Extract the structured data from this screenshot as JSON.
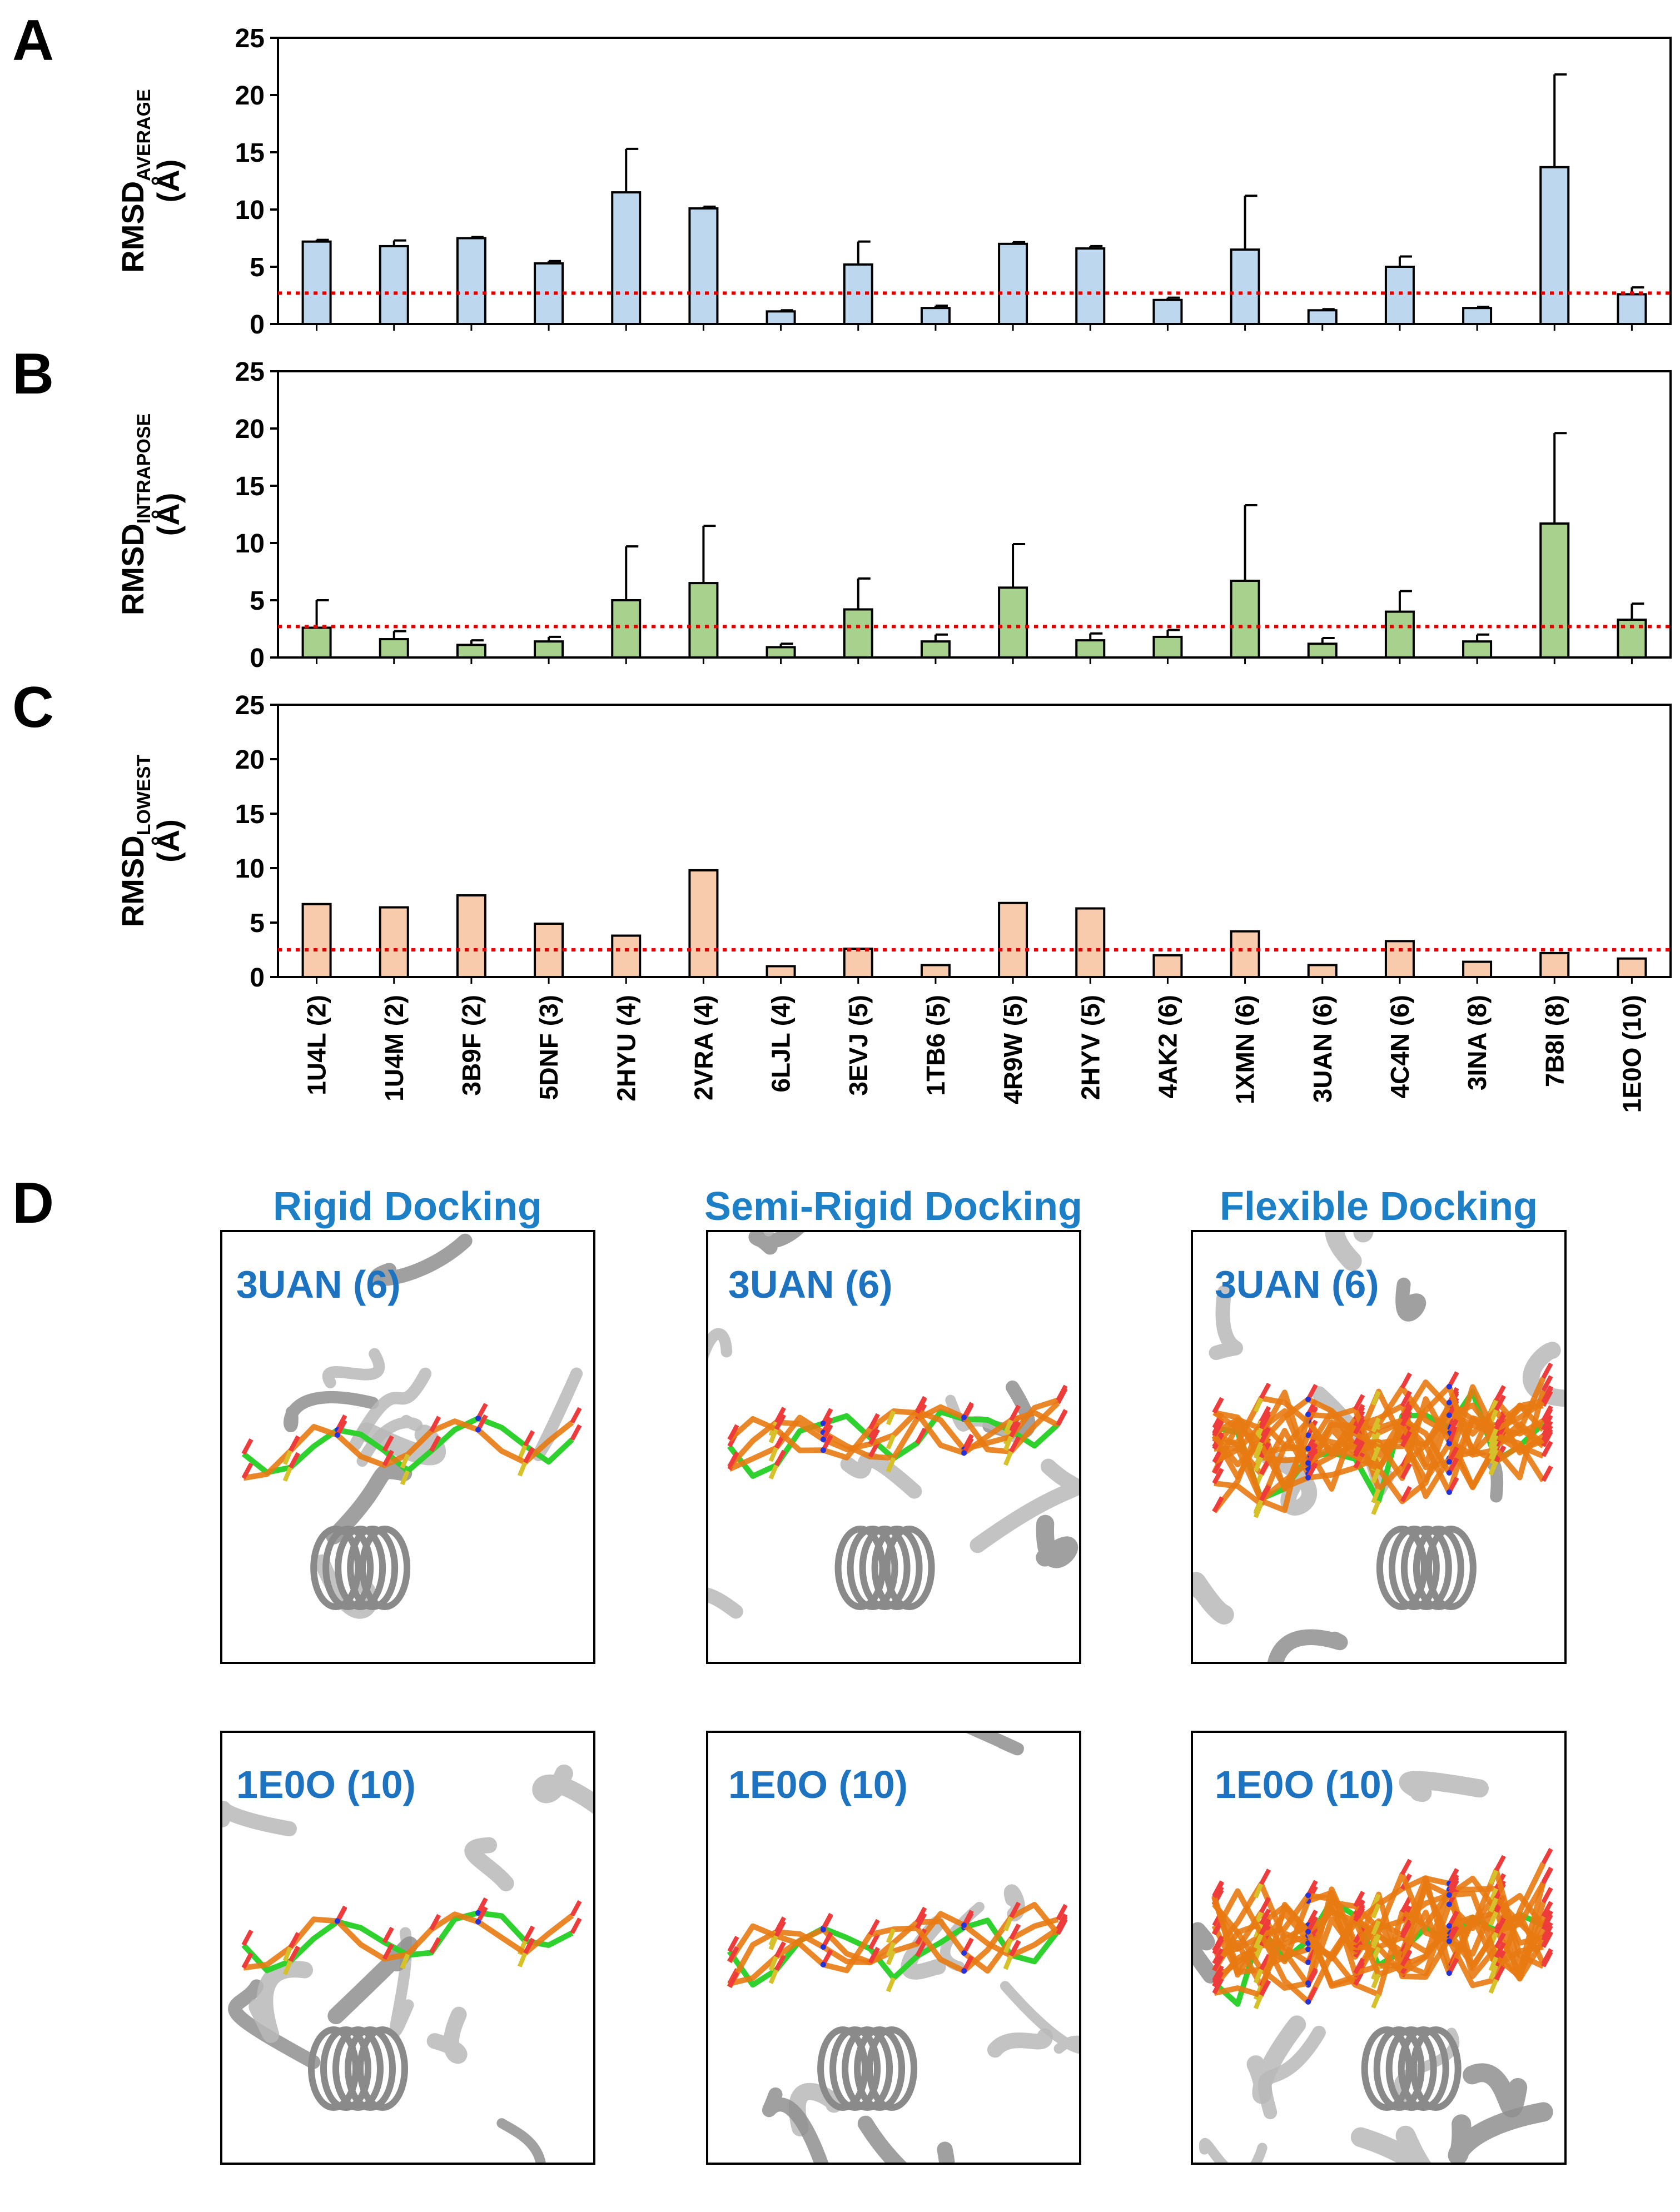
{
  "panel_labels": [
    "A",
    "B",
    "C",
    "D"
  ],
  "colors": {
    "panelA_fill": "#bdd7ee",
    "panelB_fill": "#a9d18e",
    "panelC_fill": "#f8cbad",
    "threshold": "#e00000",
    "label_blue": "#1d7fc6",
    "ligand_green": "#2fd12f",
    "ligand_orange": "#e87a12",
    "protein_grey": "#b8b8b8"
  },
  "chart_data": [
    {
      "id": "A",
      "type": "bar",
      "ylabel_main": "RMSD",
      "ylabel_sub": "AVERAGE",
      "ylabel_unit": "(Å)",
      "ylim": [
        0,
        25
      ],
      "yticks": [
        0,
        5,
        10,
        15,
        20,
        25
      ],
      "threshold": 2.7,
      "categories": [
        "1U4L (2)",
        "1U4M (2)",
        "3B9F (2)",
        "5DNF (3)",
        "2HYU (4)",
        "2VRA (4)",
        "6LJL (4)",
        "3EVJ (5)",
        "1TB6 (5)",
        "4R9W (5)",
        "2HYV (5)",
        "4AK2 (6)",
        "1XMN (6)",
        "3UAN (6)",
        "4C4N (6)",
        "3INA (8)",
        "7B8I (8)",
        "1E0O (10)"
      ],
      "values": [
        7.2,
        6.8,
        7.5,
        5.3,
        11.5,
        10.1,
        1.1,
        5.2,
        1.4,
        7.0,
        6.6,
        2.1,
        6.5,
        1.2,
        5.0,
        1.4,
        13.7,
        2.6
      ],
      "errors": [
        0.15,
        0.5,
        0.1,
        0.2,
        3.8,
        0.15,
        0.1,
        2.0,
        0.2,
        0.15,
        0.2,
        0.2,
        4.7,
        0.1,
        0.9,
        0.1,
        8.1,
        0.6
      ]
    },
    {
      "id": "B",
      "type": "bar",
      "ylabel_main": "RMSD",
      "ylabel_sub": "INTRAPOSE",
      "ylabel_unit": "(Å)",
      "ylim": [
        0,
        25
      ],
      "yticks": [
        0,
        5,
        10,
        15,
        20,
        25
      ],
      "threshold": 2.7,
      "categories": [
        "1U4L (2)",
        "1U4M (2)",
        "3B9F (2)",
        "5DNF (3)",
        "2HYU (4)",
        "2VRA (4)",
        "6LJL (4)",
        "3EVJ (5)",
        "1TB6 (5)",
        "4R9W (5)",
        "2HYV (5)",
        "4AK2 (6)",
        "1XMN (6)",
        "3UAN (6)",
        "4C4N (6)",
        "3INA (8)",
        "7B8I (8)",
        "1E0O (10)"
      ],
      "values": [
        2.6,
        1.6,
        1.1,
        1.4,
        5.0,
        6.5,
        0.9,
        4.2,
        1.4,
        6.1,
        1.5,
        1.8,
        6.7,
        1.2,
        4.0,
        1.4,
        11.7,
        3.3
      ],
      "errors": [
        2.4,
        0.7,
        0.4,
        0.4,
        4.7,
        5.0,
        0.3,
        2.7,
        0.6,
        3.8,
        0.6,
        0.6,
        6.6,
        0.5,
        1.8,
        0.6,
        7.9,
        1.4
      ]
    },
    {
      "id": "C",
      "type": "bar",
      "ylabel_main": "RMSD",
      "ylabel_sub": "LOWEST",
      "ylabel_unit": "(Å)",
      "ylim": [
        0,
        25
      ],
      "yticks": [
        0,
        5,
        10,
        15,
        20,
        25
      ],
      "threshold": 2.5,
      "categories": [
        "1U4L (2)",
        "1U4M (2)",
        "3B9F (2)",
        "5DNF (3)",
        "2HYU (4)",
        "2VRA (4)",
        "6LJL (4)",
        "3EVJ (5)",
        "1TB6 (5)",
        "4R9W (5)",
        "2HYV (5)",
        "4AK2 (6)",
        "1XMN (6)",
        "3UAN (6)",
        "4C4N (6)",
        "3INA (8)",
        "7B8I (8)",
        "1E0O (10)"
      ],
      "values": [
        6.7,
        6.4,
        7.5,
        4.9,
        3.8,
        9.8,
        1.0,
        2.6,
        1.1,
        6.8,
        6.3,
        2.0,
        4.2,
        1.1,
        3.3,
        1.4,
        2.2,
        1.7
      ]
    }
  ],
  "panel_d": {
    "column_titles": [
      "Rigid Docking",
      "Semi-Rigid Docking",
      "Flexible Docking"
    ],
    "row_labels": [
      "3UAN (6)",
      "1E0O (10)"
    ]
  }
}
